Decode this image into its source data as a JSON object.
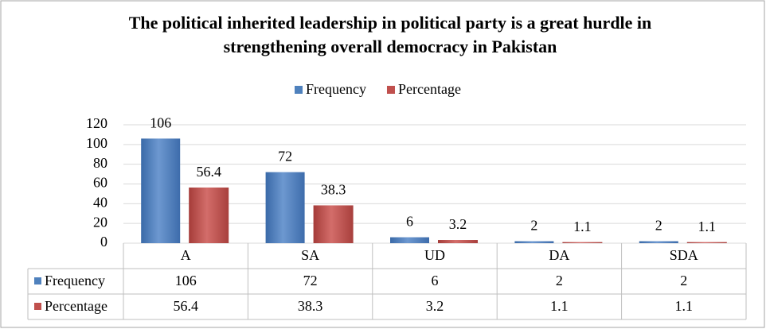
{
  "chart_data": {
    "type": "bar",
    "title": "The political inherited leadership in political party is a great hurdle in strengthening overall democracy in Pakistan",
    "categories": [
      "A",
      "SA",
      "UD",
      "DA",
      "SDA"
    ],
    "series": [
      {
        "name": "Frequency",
        "color": "#4f81bd",
        "values": [
          106,
          72,
          6,
          2,
          2
        ]
      },
      {
        "name": "Percentage",
        "color": "#c0504d",
        "values": [
          56.4,
          38.3,
          3.2,
          1.1,
          1.1
        ]
      }
    ],
    "ylim": [
      0,
      120
    ],
    "yticks": [
      0,
      20,
      40,
      60,
      80,
      100,
      120
    ],
    "grid": true,
    "legend": "top",
    "data_table": true
  }
}
